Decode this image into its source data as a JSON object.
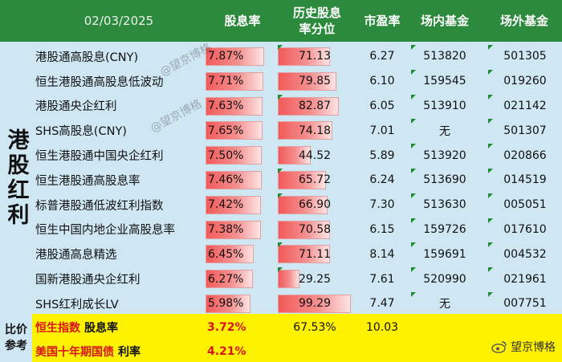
{
  "header": {
    "date": "02/03/2025",
    "col_dividend": "股息率",
    "col_percentile": "历史股息\n率分位",
    "col_pe": "市盈率",
    "col_onmarket": "场内基金",
    "col_offmarket": "场外基金"
  },
  "side_label": "港股红利",
  "rows": [
    {
      "name": "港股通高股息(CNY)",
      "dividend": "7.87%",
      "dividend_value": 7.87,
      "percentile": "71.13",
      "percentile_value": 71.13,
      "pe": "6.27",
      "onmarket": "513820",
      "offmarket": "501305"
    },
    {
      "name": "恒生港股通高股息低波动",
      "dividend": "7.71%",
      "dividend_value": 7.71,
      "percentile": "79.85",
      "percentile_value": 79.85,
      "pe": "6.10",
      "onmarket": "159545",
      "offmarket": "019260"
    },
    {
      "name": "港股通央企红利",
      "dividend": "7.63%",
      "dividend_value": 7.63,
      "percentile": "82.87",
      "percentile_value": 82.87,
      "pe": "6.05",
      "onmarket": "513910",
      "offmarket": "021142"
    },
    {
      "name": "SHS高股息(CNY)",
      "dividend": "7.65%",
      "dividend_value": 7.65,
      "percentile": "74.18",
      "percentile_value": 74.18,
      "pe": "7.01",
      "onmarket": "无",
      "offmarket": "501307"
    },
    {
      "name": "恒生港股通中国央企红利",
      "dividend": "7.50%",
      "dividend_value": 7.5,
      "percentile": "44.52",
      "percentile_value": 44.52,
      "pe": "5.89",
      "onmarket": "513920",
      "offmarket": "020866"
    },
    {
      "name": "恒生港股通高股息率",
      "dividend": "7.46%",
      "dividend_value": 7.46,
      "percentile": "65.72",
      "percentile_value": 65.72,
      "pe": "6.24",
      "onmarket": "513690",
      "offmarket": "014519"
    },
    {
      "name": "标普港股通低波红利指数",
      "dividend": "7.42%",
      "dividend_value": 7.42,
      "percentile": "66.90",
      "percentile_value": 66.9,
      "pe": "7.30",
      "onmarket": "513630",
      "offmarket": "005051"
    },
    {
      "name": "恒生中国内地企业高股息率",
      "dividend": "7.38%",
      "dividend_value": 7.38,
      "percentile": "70.58",
      "percentile_value": 70.58,
      "pe": "6.15",
      "onmarket": "159726",
      "offmarket": "017610"
    },
    {
      "name": "港股通高息精选",
      "dividend": "6.45%",
      "dividend_value": 6.45,
      "percentile": "71.11",
      "percentile_value": 71.11,
      "pe": "8.14",
      "onmarket": "159691",
      "offmarket": "004532"
    },
    {
      "name": "国新港股通央企红利",
      "dividend": "6.27%",
      "dividend_value": 6.27,
      "percentile": "29.25",
      "percentile_value": 29.25,
      "pe": "7.61",
      "onmarket": "520990",
      "offmarket": "021961"
    },
    {
      "name": "SHS红利成长LV",
      "dividend": "5.98%",
      "dividend_value": 5.98,
      "percentile": "99.29",
      "percentile_value": 99.29,
      "pe": "7.47",
      "onmarket": "无",
      "offmarket": "007751"
    }
  ],
  "footer": {
    "side_label_1": "比价",
    "side_label_2": "参考",
    "hsi_name": "恒生指数",
    "hsi_suffix": "股息率",
    "hsi_dividend": "3.72%",
    "hsi_percentile": "67.53%",
    "hsi_pe": "10.03",
    "bond_name": "美国十年期国债",
    "bond_suffix": "利率",
    "bond_rate": "4.21%"
  },
  "watermark": "@望京博格",
  "logo_text": "望京博格",
  "colors": {
    "header_bg": "#2c8a3c",
    "body_bg": "#cfe6f3",
    "footer_bg": "#fff200",
    "accent_red": "#d9151b",
    "bar_red": "#f25a5a"
  },
  "bar_scale": {
    "dividend_max": 9.0,
    "percentile_max": 100
  }
}
